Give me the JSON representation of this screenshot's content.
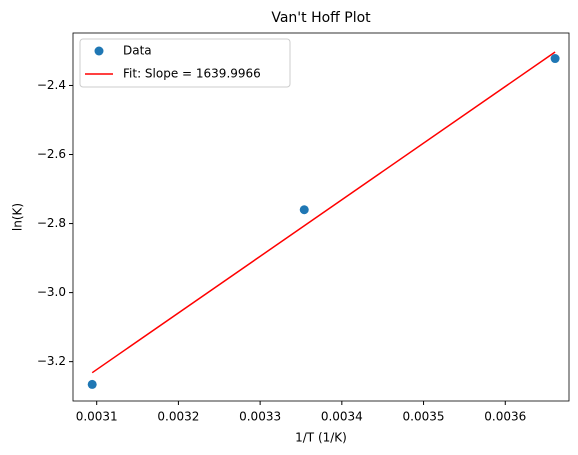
{
  "chart_data": {
    "type": "scatter",
    "title": "Van't Hoff Plot",
    "x_label": "1/T (1/K)",
    "y_label": "ln(K)",
    "series": [
      {
        "name": "Data",
        "type": "scatter",
        "color": "#1f77b4",
        "x": [
          0.0030945,
          0.003354,
          0.003661
        ],
        "values": [
          -3.266,
          -2.76,
          -2.322
        ]
      },
      {
        "name": "Fit: Slope = 1639.9966",
        "type": "line",
        "color": "#ff0000",
        "x": [
          0.0030945,
          0.003661
        ],
        "values": [
          -3.232,
          -2.303
        ]
      }
    ],
    "xlim": [
      0.003071,
      0.003678
    ],
    "xticks": [
      0.0031,
      0.0032,
      0.0033,
      0.0034,
      0.0035,
      0.0036
    ],
    "ylim": [
      -3.314,
      -2.248
    ],
    "yticks": [
      {
        "value": -3.2,
        "label": "−3.2"
      },
      {
        "value": -3.0,
        "label": "−3.0"
      },
      {
        "value": -2.8,
        "label": "−2.8"
      },
      {
        "value": -2.6,
        "label": "−2.6"
      },
      {
        "value": -2.4,
        "label": "−2.4"
      }
    ],
    "legend": "upper left"
  }
}
